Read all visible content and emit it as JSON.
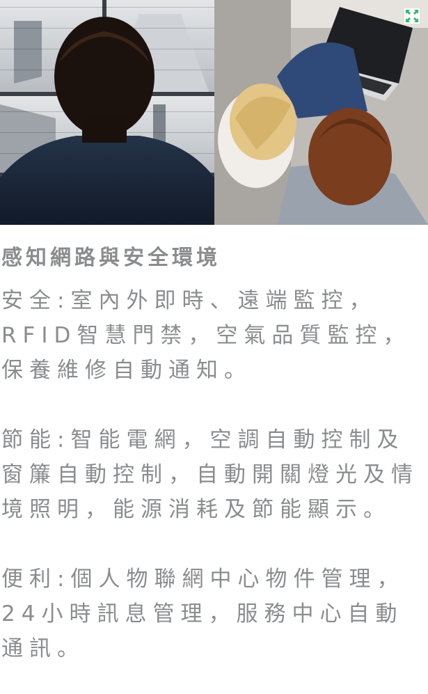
{
  "hero": {
    "left_image": "office-surveillance-monitor-scene",
    "right_image": "couple-with-laptop-on-sofa",
    "expand_icon": "expand-arrows-icon",
    "accent": "#2bb673"
  },
  "section": {
    "title": "感知網路與安全環境",
    "paragraphs": [
      "安全:室內外即時、遠端監控，RFID智慧門禁，空氣品質監控，保養維修自動通知。",
      "節能:智能電網，空調自動控制及窗簾自動控制，自動開關燈光及情境照明，能源消耗及節能顯示。",
      "便利:個人物聯網中心物件管理，24小時訊息管理，服務中心自動通訊。"
    ]
  }
}
